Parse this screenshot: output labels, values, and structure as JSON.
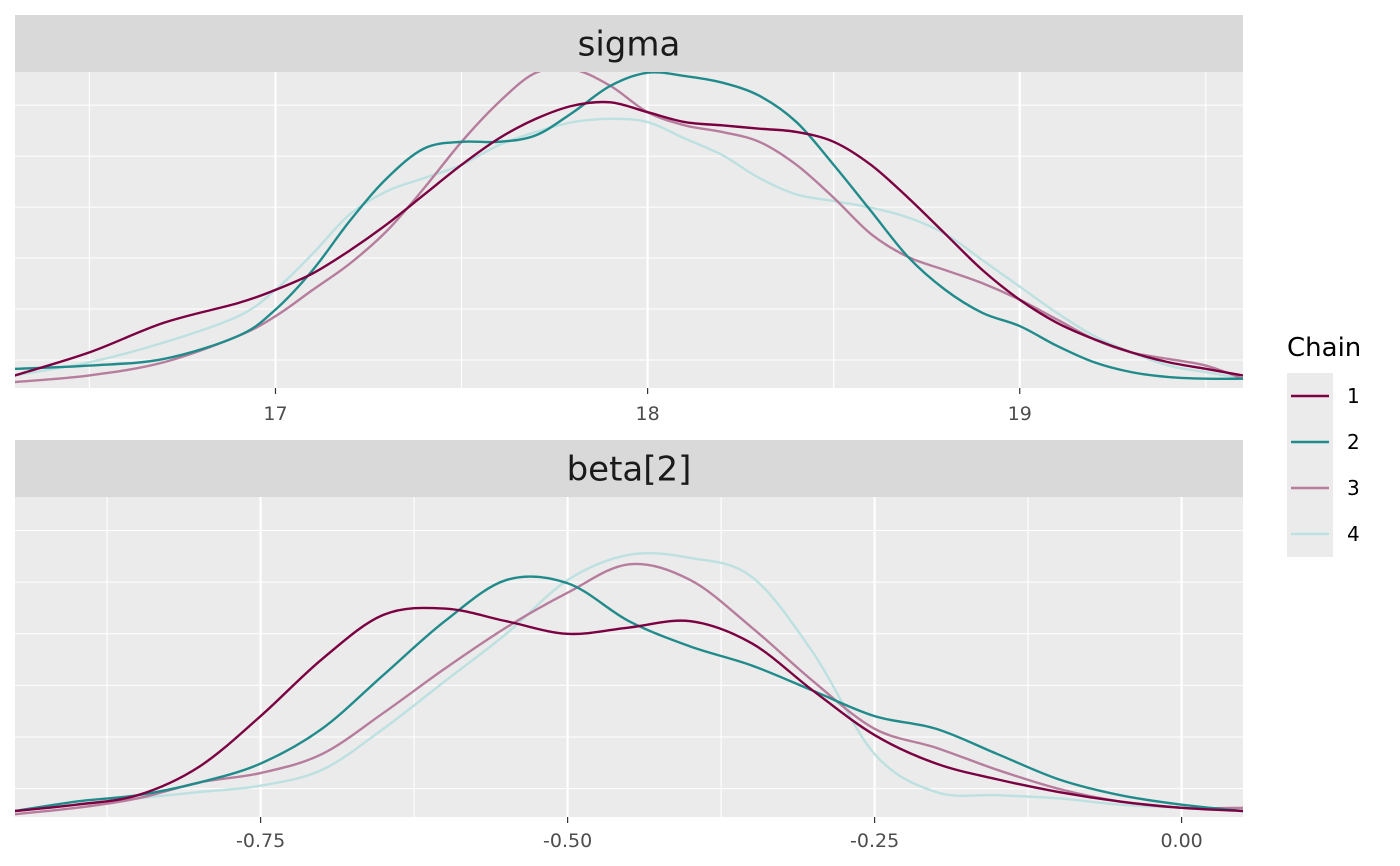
{
  "chart_data": [
    {
      "type": "line",
      "panel": "sigma",
      "xlim": [
        16.3,
        19.6
      ],
      "ylim": [
        0,
        1.0
      ],
      "x_ticks": [
        17,
        18,
        19
      ],
      "x_tick_labels": [
        "17",
        "18",
        "19"
      ],
      "grid": true,
      "series": [
        {
          "name": "1",
          "x": [
            16.3,
            16.5,
            16.7,
            16.9,
            17.0,
            17.1,
            17.2,
            17.3,
            17.4,
            17.5,
            17.6,
            17.7,
            17.8,
            17.9,
            18.0,
            18.1,
            18.2,
            18.3,
            18.4,
            18.5,
            18.6,
            18.7,
            18.8,
            18.9,
            19.0,
            19.1,
            19.2,
            19.3,
            19.4,
            19.5,
            19.6
          ],
          "y": [
            0.02,
            0.09,
            0.18,
            0.24,
            0.28,
            0.33,
            0.4,
            0.48,
            0.57,
            0.66,
            0.74,
            0.8,
            0.84,
            0.85,
            0.82,
            0.79,
            0.78,
            0.77,
            0.76,
            0.73,
            0.66,
            0.56,
            0.45,
            0.34,
            0.25,
            0.18,
            0.13,
            0.09,
            0.06,
            0.04,
            0.02
          ]
        },
        {
          "name": "2",
          "x": [
            16.3,
            16.5,
            16.7,
            16.9,
            17.0,
            17.1,
            17.2,
            17.3,
            17.4,
            17.5,
            17.6,
            17.7,
            17.8,
            17.9,
            18.0,
            18.1,
            18.2,
            18.3,
            18.4,
            18.5,
            18.6,
            18.7,
            18.8,
            18.9,
            19.0,
            19.1,
            19.2,
            19.3,
            19.4,
            19.5,
            19.6
          ],
          "y": [
            0.04,
            0.05,
            0.07,
            0.14,
            0.22,
            0.34,
            0.49,
            0.62,
            0.71,
            0.73,
            0.73,
            0.75,
            0.82,
            0.9,
            0.94,
            0.93,
            0.91,
            0.87,
            0.79,
            0.66,
            0.52,
            0.38,
            0.28,
            0.21,
            0.17,
            0.11,
            0.06,
            0.03,
            0.015,
            0.01,
            0.01
          ]
        },
        {
          "name": "3",
          "x": [
            16.3,
            16.5,
            16.7,
            16.9,
            17.0,
            17.1,
            17.2,
            17.3,
            17.4,
            17.5,
            17.6,
            17.7,
            17.8,
            17.9,
            18.0,
            18.1,
            18.2,
            18.3,
            18.4,
            18.5,
            18.6,
            18.7,
            18.8,
            18.9,
            19.0,
            19.1,
            19.2,
            19.3,
            19.4,
            19.5,
            19.6
          ],
          "y": [
            0,
            0.02,
            0.06,
            0.14,
            0.2,
            0.28,
            0.36,
            0.46,
            0.59,
            0.73,
            0.85,
            0.94,
            0.95,
            0.9,
            0.82,
            0.78,
            0.76,
            0.73,
            0.66,
            0.56,
            0.45,
            0.38,
            0.34,
            0.3,
            0.25,
            0.19,
            0.13,
            0.09,
            0.07,
            0.05,
            0.01
          ]
        },
        {
          "name": "4",
          "x": [
            16.3,
            16.5,
            16.7,
            16.9,
            17.0,
            17.1,
            17.2,
            17.3,
            17.4,
            17.5,
            17.6,
            17.7,
            17.8,
            17.9,
            18.0,
            18.1,
            18.2,
            18.3,
            18.4,
            18.5,
            18.6,
            18.7,
            18.8,
            18.9,
            19.0,
            19.1,
            19.2,
            19.3,
            19.4,
            19.5,
            19.6
          ],
          "y": [
            0.02,
            0.06,
            0.12,
            0.2,
            0.28,
            0.39,
            0.51,
            0.58,
            0.62,
            0.66,
            0.72,
            0.76,
            0.79,
            0.8,
            0.79,
            0.74,
            0.69,
            0.62,
            0.57,
            0.55,
            0.53,
            0.5,
            0.45,
            0.37,
            0.29,
            0.21,
            0.14,
            0.09,
            0.05,
            0.03,
            0.01
          ]
        }
      ]
    },
    {
      "type": "line",
      "panel": "beta[2]",
      "xlim": [
        -0.95,
        0.05
      ],
      "ylim": [
        0,
        1.0
      ],
      "x_ticks": [
        -0.75,
        -0.5,
        -0.25,
        0.0
      ],
      "x_tick_labels": [
        "-0.75",
        "-0.50",
        "-0.25",
        "0.00"
      ],
      "grid": true,
      "series": [
        {
          "name": "1",
          "x": [
            -0.95,
            -0.9,
            -0.85,
            -0.8,
            -0.75,
            -0.7,
            -0.65,
            -0.6,
            -0.55,
            -0.5,
            -0.45,
            -0.4,
            -0.35,
            -0.3,
            -0.25,
            -0.2,
            -0.15,
            -0.1,
            -0.05,
            0.0,
            0.05
          ],
          "y": [
            0,
            0.02,
            0.05,
            0.14,
            0.3,
            0.48,
            0.62,
            0.64,
            0.6,
            0.56,
            0.58,
            0.6,
            0.53,
            0.38,
            0.24,
            0.15,
            0.1,
            0.06,
            0.03,
            0.01,
            0.0
          ]
        },
        {
          "name": "2",
          "x": [
            -0.95,
            -0.9,
            -0.85,
            -0.8,
            -0.75,
            -0.7,
            -0.65,
            -0.6,
            -0.55,
            -0.5,
            -0.45,
            -0.4,
            -0.35,
            -0.3,
            -0.25,
            -0.2,
            -0.15,
            -0.1,
            -0.05,
            0.0,
            0.05
          ],
          "y": [
            0,
            0.03,
            0.05,
            0.09,
            0.15,
            0.26,
            0.43,
            0.6,
            0.73,
            0.72,
            0.6,
            0.52,
            0.46,
            0.38,
            0.3,
            0.26,
            0.18,
            0.1,
            0.05,
            0.02,
            0.0
          ]
        },
        {
          "name": "3",
          "x": [
            -0.95,
            -0.9,
            -0.85,
            -0.8,
            -0.75,
            -0.7,
            -0.65,
            -0.6,
            -0.55,
            -0.5,
            -0.45,
            -0.4,
            -0.35,
            -0.3,
            -0.25,
            -0.2,
            -0.15,
            -0.1,
            -0.05,
            0.0,
            0.05
          ],
          "y": [
            -0.01,
            0.01,
            0.04,
            0.09,
            0.12,
            0.18,
            0.31,
            0.45,
            0.58,
            0.69,
            0.78,
            0.73,
            0.58,
            0.41,
            0.26,
            0.2,
            0.13,
            0.07,
            0.03,
            0.01,
            0.01
          ]
        },
        {
          "name": "4",
          "x": [
            -0.95,
            -0.9,
            -0.85,
            -0.8,
            -0.75,
            -0.7,
            -0.65,
            -0.6,
            -0.55,
            -0.5,
            -0.45,
            -0.4,
            -0.35,
            -0.3,
            -0.25,
            -0.2,
            -0.15,
            -0.1,
            -0.05,
            0.0,
            0.05
          ],
          "y": [
            0,
            0.02,
            0.04,
            0.06,
            0.08,
            0.13,
            0.26,
            0.41,
            0.56,
            0.73,
            0.81,
            0.8,
            0.74,
            0.5,
            0.18,
            0.06,
            0.05,
            0.04,
            0.02,
            0.01,
            0.0
          ]
        }
      ]
    }
  ],
  "strips": [
    "sigma",
    "beta[2]"
  ],
  "legend": {
    "title": "Chain",
    "position": "right",
    "items": [
      {
        "label": "1",
        "color": "#7b0041"
      },
      {
        "label": "2",
        "color": "#218b8b"
      },
      {
        "label": "3",
        "color": "#b67d9c"
      },
      {
        "label": "4",
        "color": "#bde0e0"
      }
    ]
  },
  "colors": {
    "panel_bg": "#ebebeb",
    "strip_bg": "#d9d9d9",
    "grid": "#ffffff"
  }
}
